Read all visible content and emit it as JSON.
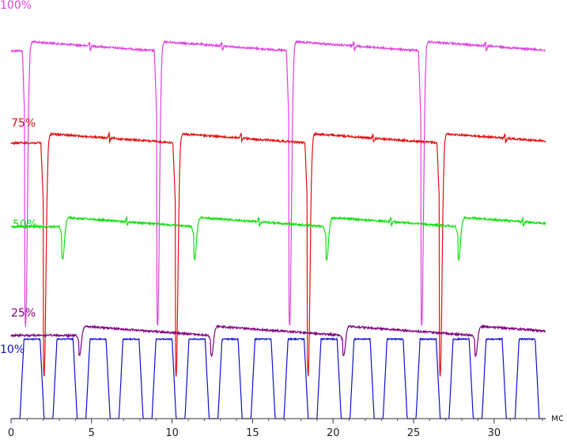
{
  "chart_data": {
    "type": "line",
    "title": "",
    "xlabel": "",
    "x_unit": "мс",
    "xlim": [
      0,
      33.2
    ],
    "xticks": [
      {
        "value": 0,
        "label": "0"
      },
      {
        "value": 5,
        "label": "5"
      },
      {
        "value": 10,
        "label": "10"
      },
      {
        "value": 15,
        "label": "15"
      },
      {
        "value": 20,
        "label": "20"
      },
      {
        "value": 25,
        "label": "25"
      },
      {
        "value": 30,
        "label": "30"
      }
    ],
    "grid": false,
    "legend": "labels above each trace, left",
    "series": [
      {
        "name": "100%",
        "color": "#e040e0",
        "period_ms": 8.2,
        "dip_times_ms": [
          0.85,
          9.05,
          17.25,
          25.45
        ],
        "blip_times_ms": [
          4.9,
          13.1,
          21.3,
          29.5
        ],
        "pulse_times_ms": [],
        "high_level": 0.89,
        "low_level": 0.22
      },
      {
        "name": "75%",
        "color": "#e01010",
        "period_ms": 8.2,
        "dip_times_ms": [
          2.0,
          10.2,
          18.4,
          26.6
        ],
        "blip_times_ms": [
          6.1,
          14.3,
          22.5,
          30.7
        ],
        "pulse_times_ms": [],
        "high_level": 0.67,
        "low_level": 0.1
      },
      {
        "name": "50%",
        "color": "#10e010",
        "period_ms": 8.2,
        "dip_times_ms": [
          3.15,
          11.35,
          19.55,
          27.75
        ],
        "blip_times_ms": [
          7.2,
          15.4,
          23.6,
          31.8
        ],
        "pulse_times_ms": [],
        "high_level": 0.47,
        "low_level": 0.38
      },
      {
        "name": "25%",
        "color": "#800080",
        "period_ms": 8.2,
        "dip_times_ms": [
          4.2,
          12.4,
          20.6,
          28.8
        ],
        "blip_times_ms": [],
        "pulse_times_ms": [],
        "high_level": 0.21,
        "low_level": 0.15
      },
      {
        "name": "10%",
        "color": "#1010d0",
        "period_ms": 2.05,
        "dip_times_ms": [],
        "blip_times_ms": [],
        "pulse_times_ms": [
          0.55,
          2.6,
          4.65,
          6.7,
          8.75,
          10.8,
          12.85,
          14.9,
          16.95,
          19.0,
          21.05,
          23.1,
          25.15,
          27.2,
          29.25,
          31.3
        ],
        "high_level": 0.19,
        "low_level": 0.0
      }
    ]
  }
}
